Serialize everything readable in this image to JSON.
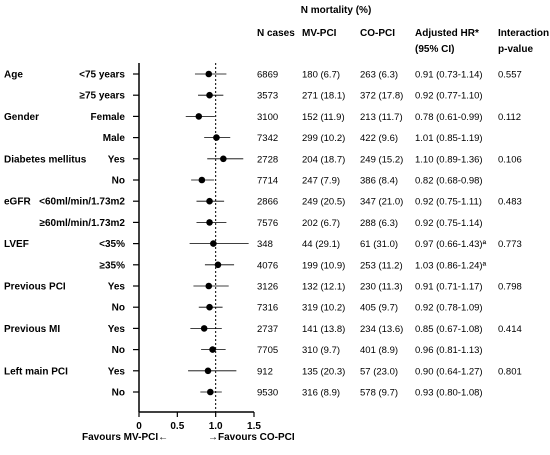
{
  "chart_data": {
    "type": "forest",
    "x_axis": {
      "min": 0,
      "max": 1.5,
      "ticks": [
        0,
        0.5,
        1.0,
        1.5
      ],
      "tick_labels": [
        "0",
        "0.5",
        "1.0",
        "1.5"
      ],
      "reference_line": 1.0,
      "label_left": "Favours MV-PCI←",
      "label_right": "→Favours CO-PCI"
    },
    "header": {
      "group_title": "N mortality (%)",
      "n_cases": "N cases",
      "mv_pci": "MV-PCI",
      "co_pci": "CO-PCI",
      "adjusted_hr": "Adjusted HR*",
      "ci": "(95% CI)",
      "interaction": "Interaction",
      "p_value": "p-value"
    },
    "rows": [
      {
        "group": "Age",
        "label": "<75 years",
        "n": "6869",
        "mv": "180 (6.7)",
        "co": "263 (6.3)",
        "hr_text": "0.91 (0.73-1.14)",
        "p": "0.557",
        "hr": 0.91,
        "lo": 0.73,
        "hi": 1.14
      },
      {
        "group": "",
        "label": "≥75 years",
        "n": "3573",
        "mv": "271  (18.1)",
        "co": "372 (17.8)",
        "hr_text": "0.92 (0.77-1.10)",
        "p": "",
        "hr": 0.92,
        "lo": 0.77,
        "hi": 1.1
      },
      {
        "group": "Gender",
        "label": "Female",
        "n": "3100",
        "mv": "152 (11.9)",
        "co": "213 (11.7)",
        "hr_text": "0.78 (0.61-0.99)",
        "p": "0.112",
        "hr": 0.78,
        "lo": 0.61,
        "hi": 0.99
      },
      {
        "group": "",
        "label": "Male",
        "n": "7342",
        "mv": "299 (10.2)",
        "co": "422 (9.6)",
        "hr_text": "1.01 (0.85-1.19)",
        "p": "",
        "hr": 1.01,
        "lo": 0.85,
        "hi": 1.19
      },
      {
        "group": "Diabetes mellitus",
        "label": "Yes",
        "n": "2728",
        "mv": "204 (18.7)",
        "co": "249 (15.2)",
        "hr_text": "1.10 (0.89-1.36)",
        "p": "0.106",
        "hr": 1.1,
        "lo": 0.89,
        "hi": 1.36
      },
      {
        "group": "",
        "label": "No",
        "n": "7714",
        "mv": "247 (7.9)",
        "co": "386 (8.4)",
        "hr_text": "0.82 (0.68-0.98)",
        "p": "",
        "hr": 0.82,
        "lo": 0.68,
        "hi": 0.98
      },
      {
        "group": "eGFR",
        "label": "<60ml/min/1.73m2",
        "n": "2866",
        "mv": "249 (20.5)",
        "co": "347 (21.0)",
        "hr_text": "0.92 (0.75-1.11)",
        "p": "0.483",
        "hr": 0.92,
        "lo": 0.75,
        "hi": 1.11
      },
      {
        "group": "",
        "label": "≥60ml/min/1.73m2",
        "n": "7576",
        "mv": "202 (6.7)",
        "co": "288 (6.3)",
        "hr_text": "0.92 (0.75-1.14)",
        "p": "",
        "hr": 0.92,
        "lo": 0.75,
        "hi": 1.14
      },
      {
        "group": "LVEF",
        "label": "<35%",
        "n": "348",
        "mv": "44 (29.1)",
        "co": "61 (31.0)",
        "hr_text": "0.97 (0.66-1.43)ª",
        "p": "0.773",
        "hr": 0.97,
        "lo": 0.66,
        "hi": 1.43
      },
      {
        "group": "",
        "label": "≥35%",
        "n": "4076",
        "mv": "199 (10.9)",
        "co": "253 (11.2)",
        "hr_text": "1.03 (0.86-1.24)ª",
        "p": "",
        "hr": 1.03,
        "lo": 0.86,
        "hi": 1.24
      },
      {
        "group": "Previous PCI",
        "label": "Yes",
        "n": "3126",
        "mv": "132 (12.1)",
        "co": "230 (11.3)",
        "hr_text": "0.91 (0.71-1.17)",
        "p": "0.798",
        "hr": 0.91,
        "lo": 0.71,
        "hi": 1.17
      },
      {
        "group": "",
        "label": "No",
        "n": "7316",
        "mv": "319 (10.2)",
        "co": "405 (9.7)",
        "hr_text": "0.92 (0.78-1.09)",
        "p": "",
        "hr": 0.92,
        "lo": 0.78,
        "hi": 1.09
      },
      {
        "group": "Previous MI",
        "label": "Yes",
        "n": "2737",
        "mv": "141 (13.8)",
        "co": "234 (13.6)",
        "hr_text": "0.85 (0.67-1.08)",
        "p": "0.414",
        "hr": 0.85,
        "lo": 0.67,
        "hi": 1.08
      },
      {
        "group": "",
        "label": "No",
        "n": "7705",
        "mv": "310 (9.7)",
        "co": "401 (8.9)",
        "hr_text": "0.96 (0.81-1.13)",
        "p": "",
        "hr": 0.96,
        "lo": 0.81,
        "hi": 1.13
      },
      {
        "group": "Left main PCI",
        "label": "Yes",
        "n": "912",
        "mv": "135 (20.3)",
        "co": "57 (23.0)",
        "hr_text": "0.90 (0.64-1.27)",
        "p": "0.801",
        "hr": 0.9,
        "lo": 0.64,
        "hi": 1.27
      },
      {
        "group": "",
        "label": "No",
        "n": "9530",
        "mv": "316 (8.9)",
        "co": "578 (9.7)",
        "hr_text": "0.93 (0.80-1.08)",
        "p": "",
        "hr": 0.93,
        "lo": 0.8,
        "hi": 1.08
      }
    ]
  }
}
